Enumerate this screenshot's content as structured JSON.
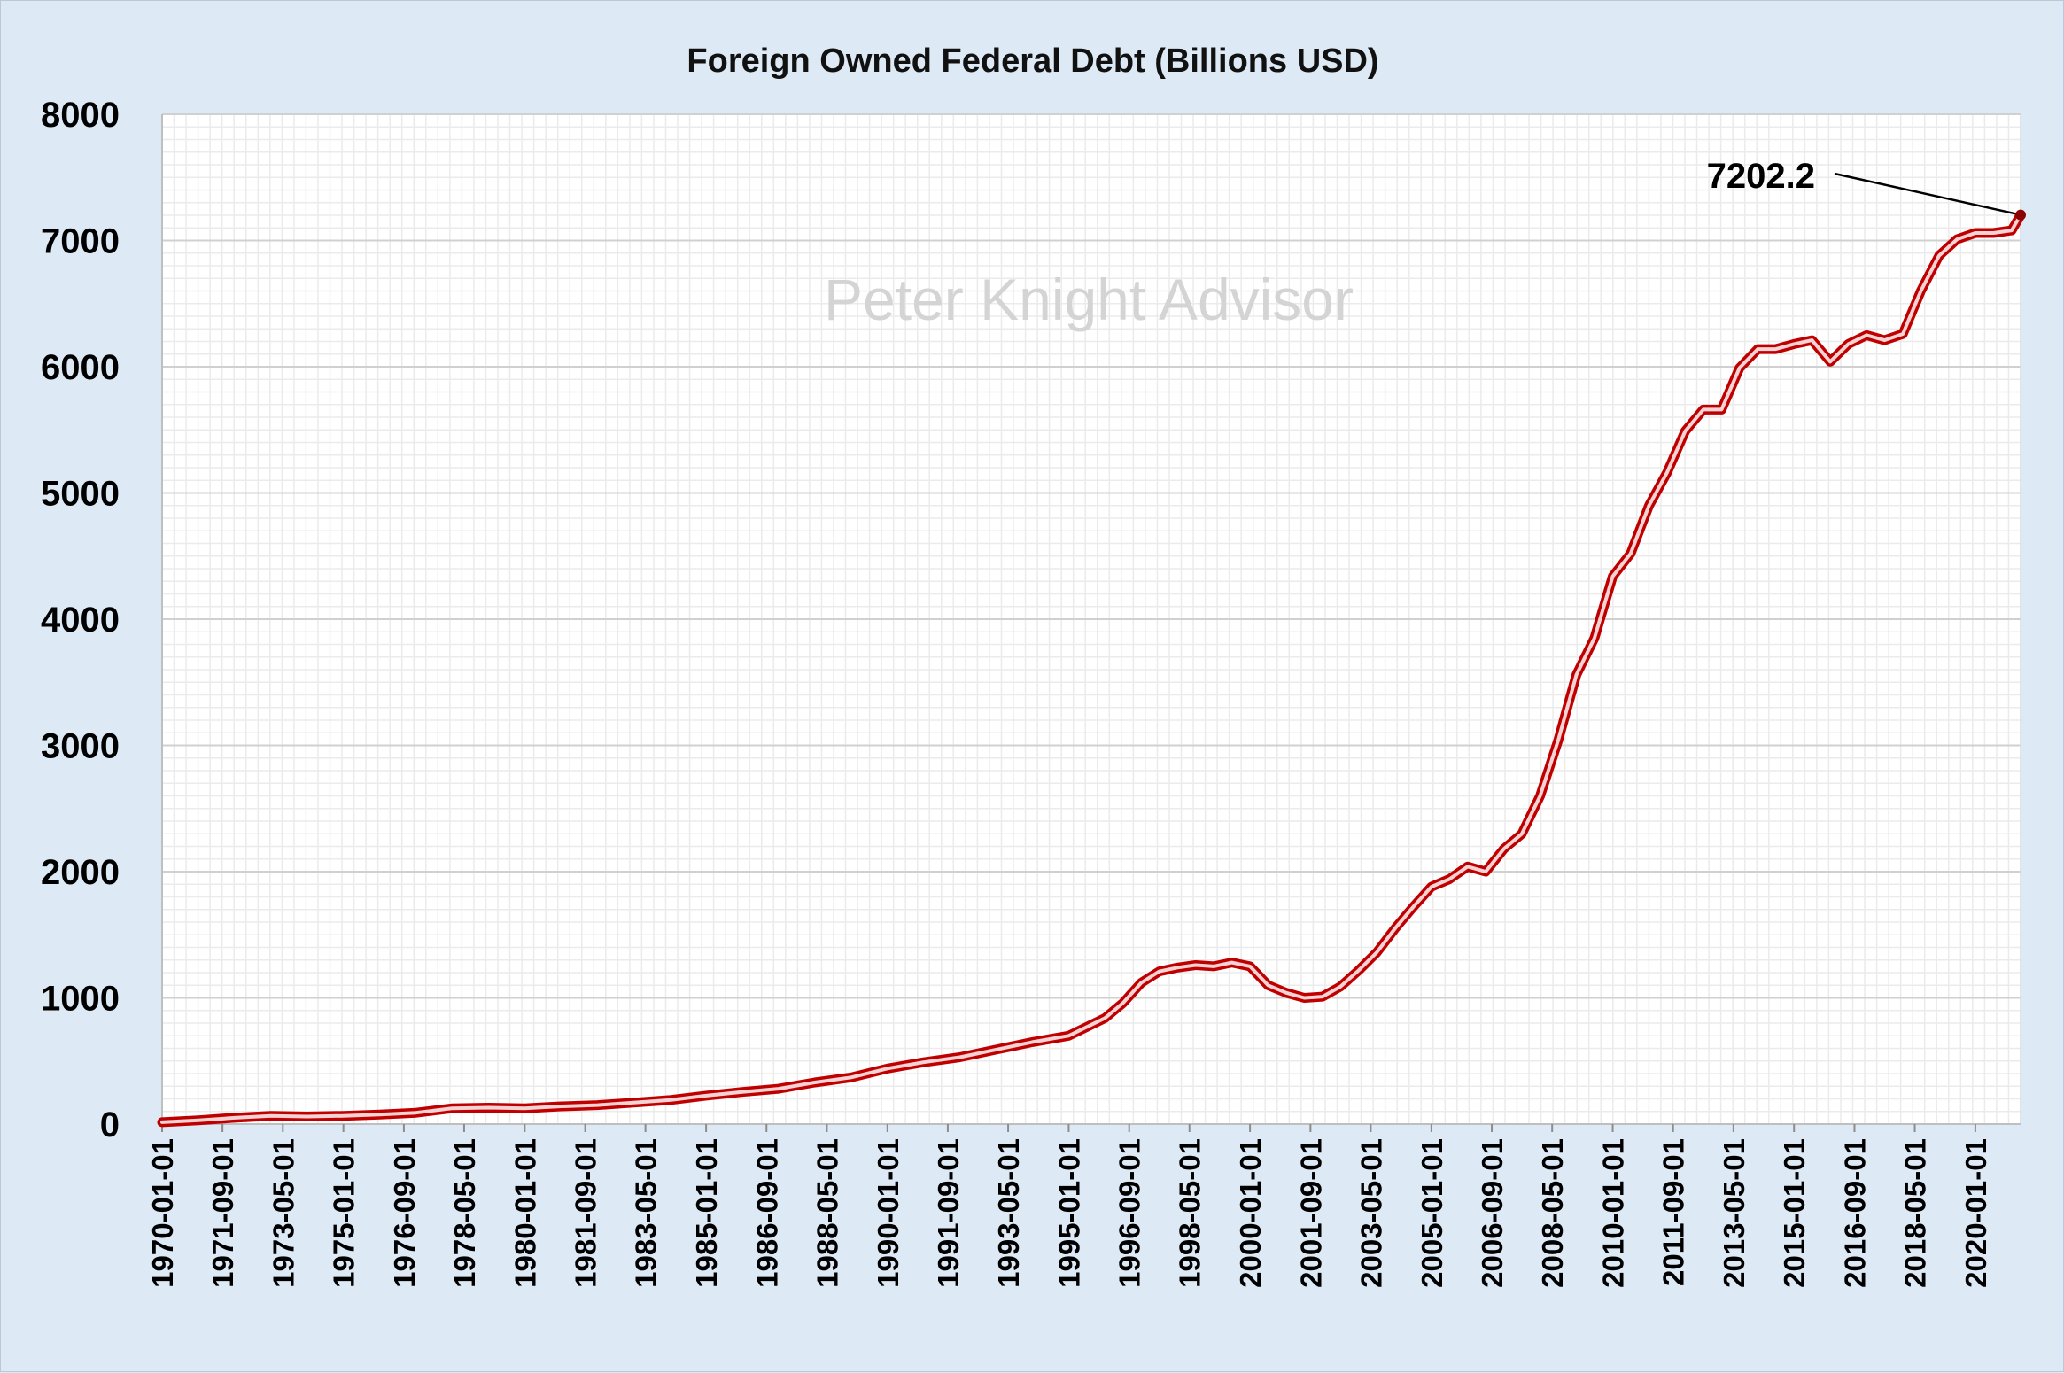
{
  "chart_data": {
    "type": "line",
    "title": "Foreign Owned Federal Debt (Billions USD)",
    "xlabel": "",
    "ylabel": "",
    "ylim": [
      0,
      8000
    ],
    "yticks": [
      0,
      1000,
      2000,
      3000,
      4000,
      5000,
      6000,
      7000,
      8000
    ],
    "xlim": [
      "1970-01-01",
      "2021-04-01"
    ],
    "xtick_labels": [
      "1970-01-01",
      "1971-09-01",
      "1973-05-01",
      "1975-01-01",
      "1976-09-01",
      "1978-05-01",
      "1980-01-01",
      "1981-09-01",
      "1983-05-01",
      "1985-01-01",
      "1986-09-01",
      "1988-05-01",
      "1990-01-01",
      "1991-09-01",
      "1993-05-01",
      "1995-01-01",
      "1996-09-01",
      "1998-05-01",
      "2000-01-01",
      "2001-09-01",
      "2003-05-01",
      "2005-01-01",
      "2006-09-01",
      "2008-05-01",
      "2010-01-01",
      "2011-09-01",
      "2013-05-01",
      "2015-01-01",
      "2016-09-01",
      "2018-05-01",
      "2020-01-01"
    ],
    "grid": "major and minor",
    "line_color": "#c00000",
    "watermark": "Peter Knight Advisor",
    "annotation": {
      "text": "7202.2",
      "x": "2021-04-01",
      "y": 7202.2
    },
    "series": [
      {
        "x": [
          "1970-01-01",
          "1971-01-01",
          "1972-01-01",
          "1973-01-01",
          "1974-01-01",
          "1975-01-01",
          "1976-01-01",
          "1977-01-01",
          "1978-01-01",
          "1979-01-01",
          "1980-01-01",
          "1981-01-01",
          "1982-01-01",
          "1983-01-01",
          "1984-01-01",
          "1985-01-01",
          "1986-01-01",
          "1987-01-01",
          "1988-01-01",
          "1989-01-01",
          "1990-01-01",
          "1991-01-01",
          "1992-01-01",
          "1993-01-01",
          "1994-01-01",
          "1995-01-01",
          "1996-01-01",
          "1996-07-01",
          "1997-01-01",
          "1997-07-01",
          "1998-01-01",
          "1998-07-01",
          "1999-01-01",
          "1999-07-01",
          "2000-01-01",
          "2000-07-01",
          "2001-01-01",
          "2001-07-01",
          "2002-01-01",
          "2002-07-01",
          "2003-01-01",
          "2003-07-01",
          "2004-01-01",
          "2004-07-01",
          "2005-01-01",
          "2005-07-01",
          "2006-01-01",
          "2006-07-01",
          "2007-01-01",
          "2007-07-01",
          "2008-01-01",
          "2008-07-01",
          "2009-01-01",
          "2009-07-01",
          "2010-01-01",
          "2010-07-01",
          "2011-01-01",
          "2011-07-01",
          "2012-01-01",
          "2012-07-01",
          "2013-01-01",
          "2013-07-01",
          "2014-01-01",
          "2014-07-01",
          "2015-01-01",
          "2015-07-01",
          "2016-01-01",
          "2016-07-01",
          "2017-01-01",
          "2017-07-01",
          "2018-01-01",
          "2018-07-01",
          "2019-01-01",
          "2019-07-01",
          "2020-01-01",
          "2020-07-01",
          "2021-01-01",
          "2021-04-01"
        ],
        "values": [
          15,
          30,
          50,
          65,
          60,
          65,
          75,
          90,
          125,
          130,
          125,
          140,
          150,
          170,
          190,
          225,
          255,
          280,
          330,
          370,
          440,
          490,
          530,
          590,
          650,
          700,
          840,
          960,
          1120,
          1210,
          1240,
          1260,
          1250,
          1280,
          1250,
          1100,
          1040,
          1000,
          1010,
          1090,
          1220,
          1360,
          1550,
          1720,
          1880,
          1940,
          2040,
          2000,
          2180,
          2300,
          2600,
          3040,
          3560,
          3850,
          4340,
          4520,
          4900,
          5160,
          5490,
          5660,
          5660,
          5990,
          6140,
          6140,
          6180,
          6210,
          6040,
          6180,
          6250,
          6210,
          6260,
          6600,
          6880,
          7010,
          7060,
          7060,
          7080,
          7202.2
        ]
      }
    ]
  }
}
